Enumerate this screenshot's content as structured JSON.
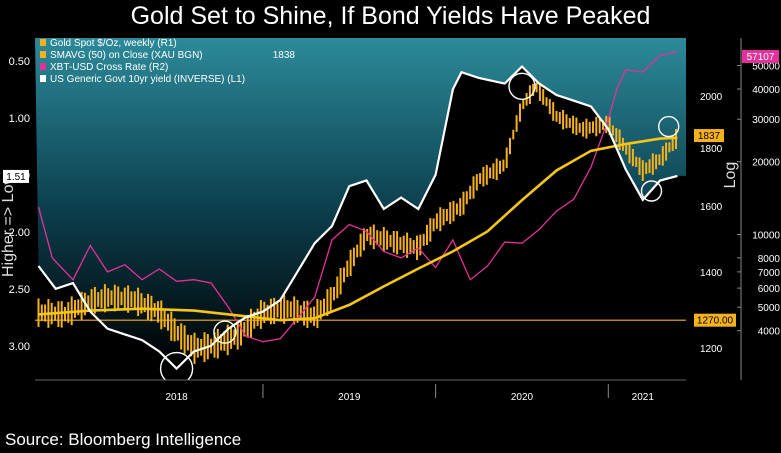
{
  "chart_data": {
    "type": "line",
    "title": "Gold Set to Shine, If Bond Yields Have Peaked",
    "source": "Source: Bloomberg Intelligence",
    "x_labels": [
      "2018",
      "2019",
      "2020",
      "2021"
    ],
    "left_axis": {
      "label": "Higher => Low",
      "inverted": true,
      "range": [
        0.3,
        3.3
      ],
      "ticks": [
        "0.50",
        "1.00",
        "1.50",
        "2.00",
        "2.50",
        "3.00"
      ],
      "current_marker": "1.51"
    },
    "right1_axis": {
      "label": "Log",
      "range": [
        1125,
        2250
      ],
      "ticks": [
        "2000",
        "1800",
        "1600",
        "1400",
        "1200"
      ],
      "marker_value": "1837",
      "reference_line_label": "1270.00"
    },
    "right2_axis": {
      "range": [
        2500,
        65000
      ],
      "ticks": [
        "50000",
        "40000",
        "30000",
        "20000",
        "10000",
        "8000",
        "7000",
        "6000",
        "5000",
        "4000"
      ],
      "marker_value": "57107"
    },
    "legend": [
      {
        "name": "Gold Spot $/Oz, weekly (R1)",
        "color": "#f5b21c",
        "value": ""
      },
      {
        "name": "SMAVG (50)  on Close (XAU BGN)",
        "color": "#f5b21c",
        "value": "1838"
      },
      {
        "name": "XBT-USD Cross Rate (R2)",
        "color": "#e2329a",
        "value": ""
      },
      {
        "name": "US Generic Govt 10yr yield (INVERSE) (L1)",
        "color": "#ffffff",
        "value": ""
      }
    ],
    "series": [
      {
        "name": "Gold Spot $/Oz, weekly",
        "axis": "R1",
        "x": [
          2017.7,
          2017.85,
          2018.0,
          2018.1,
          2018.25,
          2018.4,
          2018.5,
          2018.6,
          2018.7,
          2018.85,
          2019.0,
          2019.15,
          2019.3,
          2019.4,
          2019.5,
          2019.6,
          2019.75,
          2019.9,
          2020.0,
          2020.15,
          2020.25,
          2020.4,
          2020.5,
          2020.58,
          2020.7,
          2020.85,
          2021.0,
          2021.1,
          2021.2,
          2021.3,
          2021.4
        ],
        "values": [
          1290,
          1285,
          1320,
          1330,
          1325,
          1290,
          1240,
          1200,
          1205,
          1230,
          1290,
          1300,
          1280,
          1330,
          1420,
          1510,
          1490,
          1470,
          1550,
          1600,
          1690,
          1740,
          1960,
          2040,
          1920,
          1870,
          1890,
          1800,
          1720,
          1760,
          1840
        ]
      },
      {
        "name": "SMAVG (50) on Close",
        "axis": "R1",
        "x": [
          2017.7,
          2018.0,
          2018.3,
          2018.6,
          2018.9,
          2019.1,
          2019.3,
          2019.5,
          2019.7,
          2019.9,
          2020.1,
          2020.3,
          2020.5,
          2020.7,
          2020.9,
          2021.1,
          2021.3,
          2021.4
        ],
        "values": [
          1285,
          1295,
          1300,
          1295,
          1280,
          1270,
          1275,
          1310,
          1360,
          1410,
          1460,
          1520,
          1620,
          1720,
          1790,
          1815,
          1835,
          1838
        ]
      },
      {
        "name": "XBT-USD Cross Rate",
        "axis": "R2",
        "x": [
          2017.7,
          2017.78,
          2017.9,
          2018.0,
          2018.1,
          2018.2,
          2018.3,
          2018.4,
          2018.5,
          2018.6,
          2018.7,
          2018.8,
          2018.9,
          2019.0,
          2019.1,
          2019.2,
          2019.3,
          2019.4,
          2019.5,
          2019.6,
          2019.7,
          2019.8,
          2019.9,
          2020.0,
          2020.1,
          2020.2,
          2020.3,
          2020.4,
          2020.5,
          2020.6,
          2020.7,
          2020.8,
          2020.9,
          2021.0,
          2021.05,
          2021.1,
          2021.2,
          2021.3,
          2021.4
        ],
        "values": [
          13000,
          8000,
          6500,
          9000,
          7000,
          7500,
          6500,
          7200,
          6400,
          6500,
          6300,
          5000,
          3800,
          3600,
          3700,
          4500,
          5500,
          9500,
          11000,
          10300,
          8500,
          8000,
          8800,
          7300,
          9500,
          6500,
          7400,
          9300,
          9200,
          10500,
          12500,
          14000,
          19000,
          30000,
          40000,
          48000,
          47000,
          55000,
          57107
        ]
      },
      {
        "name": "US Generic Govt 10yr yield (INVERSE)",
        "axis": "L1",
        "x": [
          2017.7,
          2017.8,
          2017.9,
          2018.0,
          2018.1,
          2018.2,
          2018.3,
          2018.4,
          2018.5,
          2018.6,
          2018.7,
          2018.8,
          2018.9,
          2019.0,
          2019.1,
          2019.2,
          2019.3,
          2019.4,
          2019.5,
          2019.6,
          2019.7,
          2019.8,
          2019.9,
          2020.0,
          2020.1,
          2020.15,
          2020.25,
          2020.4,
          2020.5,
          2020.6,
          2020.7,
          2020.8,
          2020.9,
          2021.0,
          2021.1,
          2021.2,
          2021.3,
          2021.4
        ],
        "values": [
          2.3,
          2.5,
          2.45,
          2.7,
          2.85,
          2.9,
          2.95,
          3.05,
          3.2,
          3.05,
          3.0,
          2.85,
          2.75,
          2.7,
          2.6,
          2.35,
          2.1,
          1.95,
          1.6,
          1.55,
          1.8,
          1.7,
          1.8,
          1.5,
          0.75,
          0.6,
          0.65,
          0.7,
          0.55,
          0.7,
          0.8,
          0.85,
          0.9,
          1.1,
          1.45,
          1.72,
          1.55,
          1.51
        ]
      }
    ],
    "annotations": [
      "circle at 2018 yield peak",
      "circle at 2020 gold peak",
      "circle at 2021 current gold"
    ]
  }
}
